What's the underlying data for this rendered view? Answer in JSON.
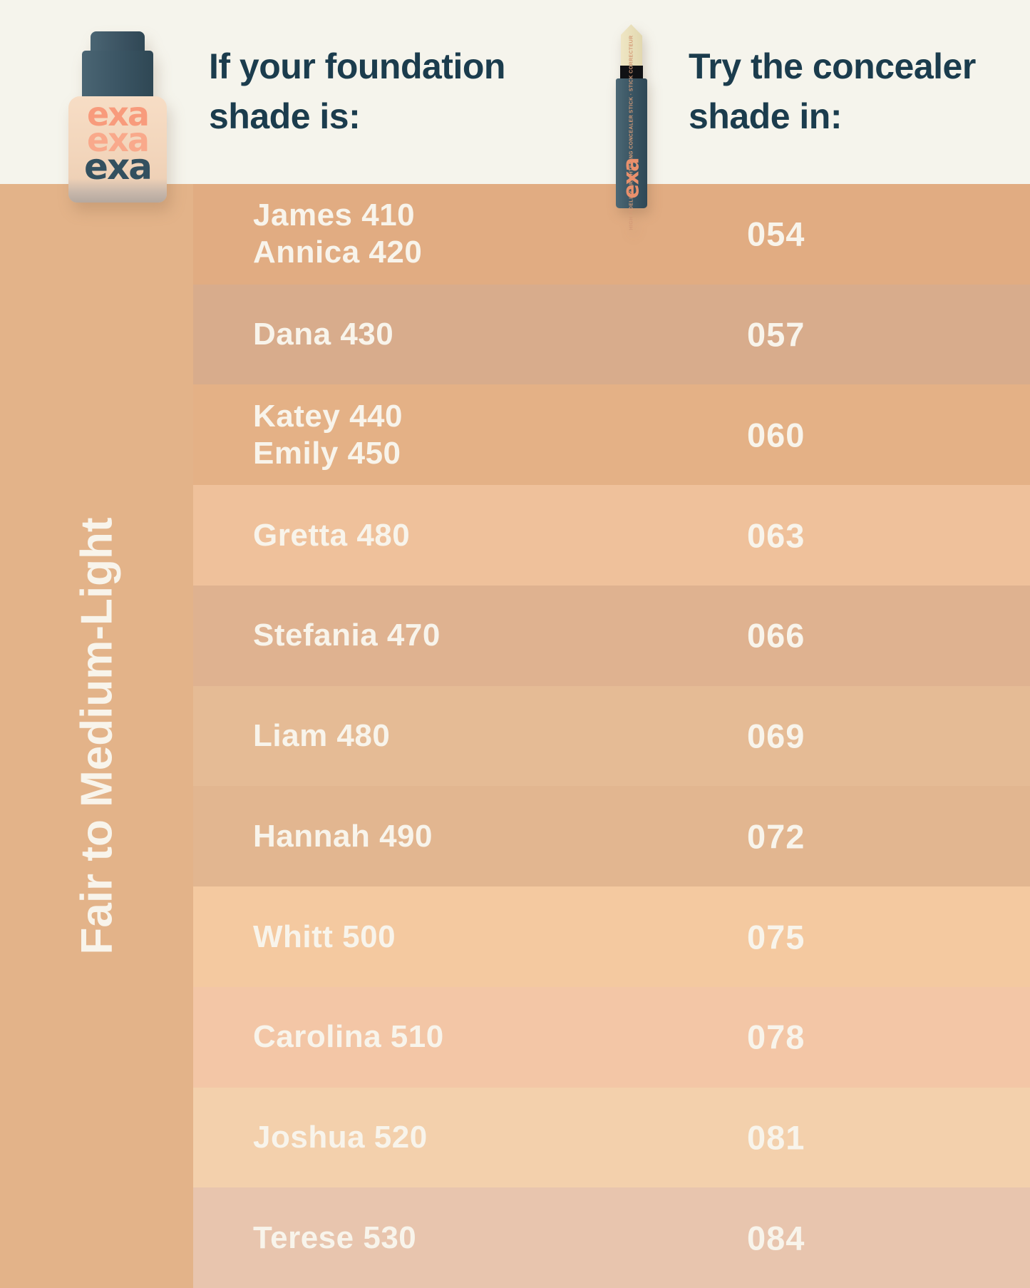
{
  "header": {
    "foundation_heading": "If your foundation shade is:",
    "concealer_heading": "Try the concealer shade in:"
  },
  "sidebar": {
    "label": "Fair to Medium-Light"
  },
  "products": {
    "foundation": {
      "logo_lines": [
        "exa",
        "exa",
        "exa"
      ]
    },
    "concealer": {
      "logo": "exa",
      "label": "HIGH FIDELITY BRIGHTENING CONCEALER STICK · STICK CORRECTEUR"
    }
  },
  "colors": {
    "header_bg": "#F5F4EC",
    "heading_text": "#1B3C4D",
    "sidebar_bg": "#E3B389",
    "row_text": "#F8F4EB",
    "logo_salmon": "#F89B7C",
    "logo_salmon_light": "#F9A98B",
    "logo_navy": "#33505F"
  },
  "chart_data": {
    "type": "table",
    "columns": [
      "If your foundation shade is:",
      "Try the concealer shade in:"
    ],
    "group_label": "Fair to Medium-Light",
    "rows": [
      {
        "foundation_shades": [
          "James 410",
          "Annica 420"
        ],
        "concealer_shade": "054",
        "bg": "#E1AC82"
      },
      {
        "foundation_shades": [
          "Dana 430"
        ],
        "concealer_shade": "057",
        "bg": "#D8AC8C"
      },
      {
        "foundation_shades": [
          "Katey 440",
          "Emily 450"
        ],
        "concealer_shade": "060",
        "bg": "#E4B186"
      },
      {
        "foundation_shades": [
          "Gretta 480"
        ],
        "concealer_shade": "063",
        "bg": "#EFC19B"
      },
      {
        "foundation_shades": [
          "Stefania 470"
        ],
        "concealer_shade": "066",
        "bg": "#DFB290"
      },
      {
        "foundation_shades": [
          "Liam 480"
        ],
        "concealer_shade": "069",
        "bg": "#E5BB95"
      },
      {
        "foundation_shades": [
          "Hannah 490"
        ],
        "concealer_shade": "072",
        "bg": "#E2B690"
      },
      {
        "foundation_shades": [
          "Whitt 500"
        ],
        "concealer_shade": "075",
        "bg": "#F4C9A0"
      },
      {
        "foundation_shades": [
          "Carolina 510"
        ],
        "concealer_shade": "078",
        "bg": "#F3C6A6"
      },
      {
        "foundation_shades": [
          "Joshua 520"
        ],
        "concealer_shade": "081",
        "bg": "#F3D0AC"
      },
      {
        "foundation_shades": [
          "Terese 530"
        ],
        "concealer_shade": "084",
        "bg": "#E8C5AE"
      }
    ]
  }
}
